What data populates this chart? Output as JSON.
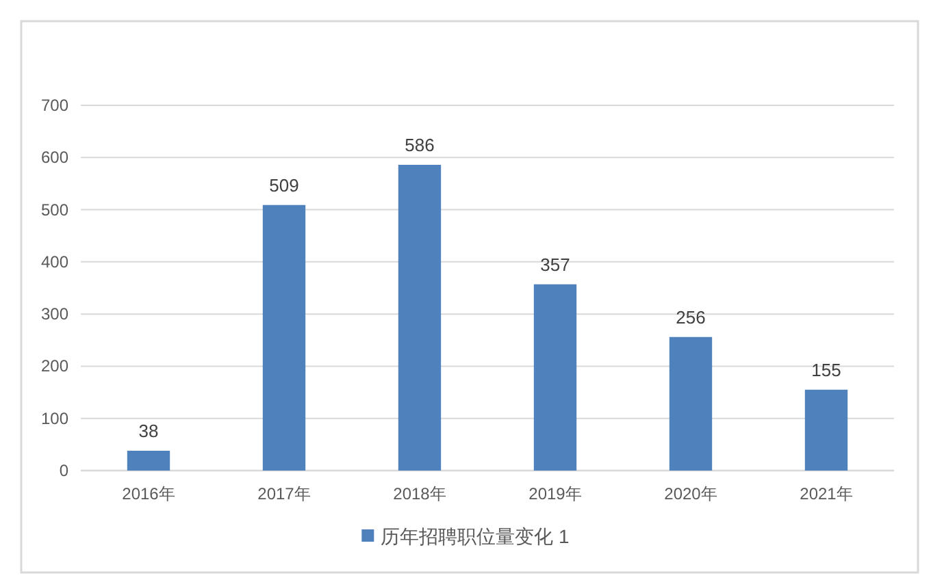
{
  "chart_data": {
    "type": "bar",
    "categories": [
      "2016年",
      "2017年",
      "2018年",
      "2019年",
      "2020年",
      "2021年"
    ],
    "series": [
      {
        "name": "历年招聘职位量变化 1",
        "color": "#4f81bd",
        "values": [
          38,
          509,
          586,
          357,
          256,
          155
        ]
      }
    ],
    "ylim": [
      0,
      700
    ],
    "yticks": [
      0,
      100,
      200,
      300,
      400,
      500,
      600,
      700
    ],
    "grid": "y",
    "legend": "bottom",
    "data_labels": true
  }
}
